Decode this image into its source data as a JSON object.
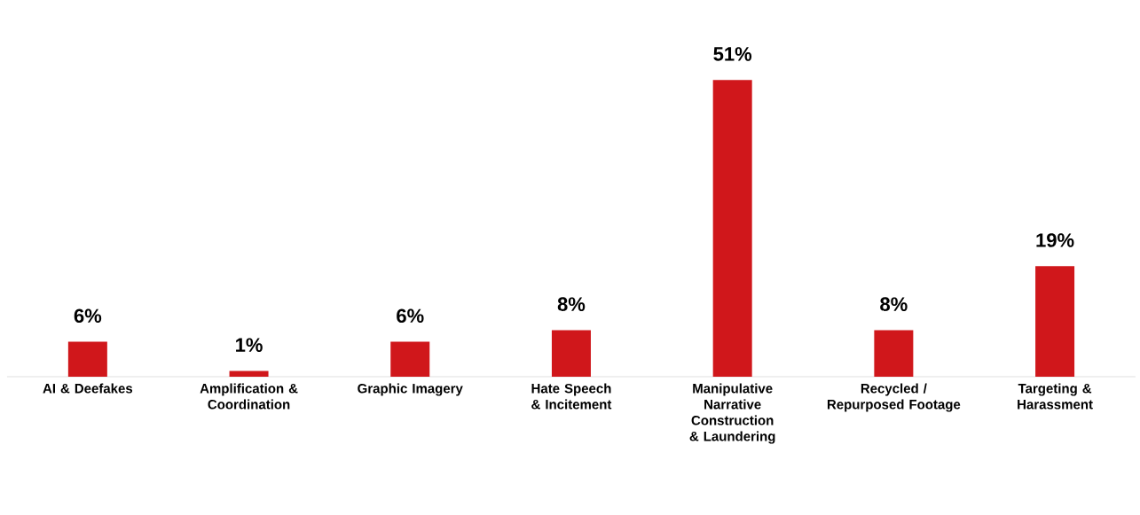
{
  "chart_data": {
    "type": "bar",
    "categories": [
      "AI & Deefakes",
      "Amplification & Coordination",
      "Graphic Imagery",
      "Hate Speech & Incitement",
      "Manipulative Narrative Construction & Laundering",
      "Recycled / Repurposed Footage",
      "Targeting & Harassment"
    ],
    "values": [
      6,
      1,
      6,
      8,
      51,
      8,
      19
    ],
    "value_labels": [
      "6%",
      "1%",
      "6%",
      "8%",
      "51%",
      "8%",
      "19%"
    ],
    "color": "#d0171b"
  }
}
